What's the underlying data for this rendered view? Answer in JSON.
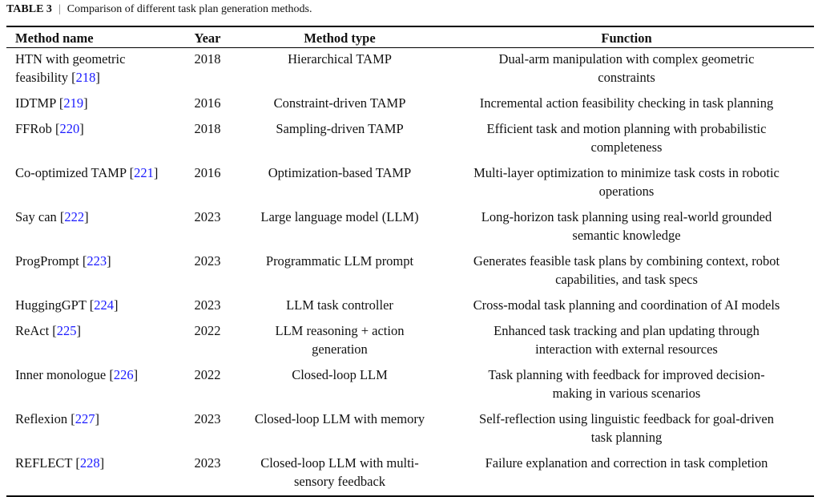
{
  "caption": {
    "label": "TABLE 3",
    "separator": "|",
    "text": "Comparison of different task plan generation methods."
  },
  "colors": {
    "reference_link": "#1a1aff",
    "rules": "#000000"
  },
  "headers": [
    "Method name",
    "Year",
    "Method type",
    "Function"
  ],
  "rows": [
    {
      "name": [
        "HTN with geometric",
        "feasibility"
      ],
      "ref": "218",
      "year": "2018",
      "type": [
        "Hierarchical TAMP"
      ],
      "function": [
        "Dual-arm manipulation with complex geometric",
        "constraints"
      ]
    },
    {
      "name": [
        "IDTMP"
      ],
      "ref": "219",
      "year": "2016",
      "type": [
        "Constraint-driven TAMP"
      ],
      "function": [
        "Incremental action feasibility checking in task planning"
      ]
    },
    {
      "name": [
        "FFRob"
      ],
      "ref": "220",
      "year": "2018",
      "type": [
        "Sampling-driven TAMP"
      ],
      "function": [
        "Efficient task and motion planning with probabilistic",
        "completeness"
      ]
    },
    {
      "name": [
        "Co-optimized TAMP"
      ],
      "ref": "221",
      "year": "2016",
      "type": [
        "Optimization-based TAMP"
      ],
      "function": [
        "Multi-layer optimization to minimize task costs in robotic",
        "operations"
      ]
    },
    {
      "name": [
        "Say can"
      ],
      "ref": "222",
      "year": "2023",
      "type": [
        "Large language model (LLM)"
      ],
      "function": [
        "Long-horizon task planning using real-world grounded",
        "semantic knowledge"
      ]
    },
    {
      "name": [
        "ProgPrompt"
      ],
      "ref": "223",
      "year": "2023",
      "type": [
        "Programmatic LLM prompt"
      ],
      "function": [
        "Generates feasible task plans by combining context, robot",
        "capabilities, and task specs"
      ]
    },
    {
      "name": [
        "HuggingGPT"
      ],
      "ref": "224",
      "year": "2023",
      "type": [
        "LLM task controller"
      ],
      "function": [
        "Cross-modal task planning and coordination of AI models"
      ]
    },
    {
      "name": [
        "ReAct"
      ],
      "ref": "225",
      "year": "2022",
      "type": [
        "LLM reasoning + action",
        "generation"
      ],
      "function": [
        "Enhanced task tracking and plan updating through",
        "interaction with external resources"
      ]
    },
    {
      "name": [
        "Inner monologue"
      ],
      "ref": "226",
      "year": "2022",
      "type": [
        "Closed-loop LLM"
      ],
      "function": [
        "Task planning with feedback for improved decision-",
        "making in various scenarios"
      ]
    },
    {
      "name": [
        "Reflexion"
      ],
      "ref": "227",
      "year": "2023",
      "type": [
        "Closed-loop LLM with memory"
      ],
      "function": [
        "Self-reflection using linguistic feedback for goal-driven",
        "task planning"
      ]
    },
    {
      "name": [
        "REFLECT"
      ],
      "ref": "228",
      "year": "2023",
      "type": [
        "Closed-loop LLM with multi-",
        "sensory feedback"
      ],
      "function": [
        "Failure explanation and correction in task completion"
      ]
    }
  ]
}
